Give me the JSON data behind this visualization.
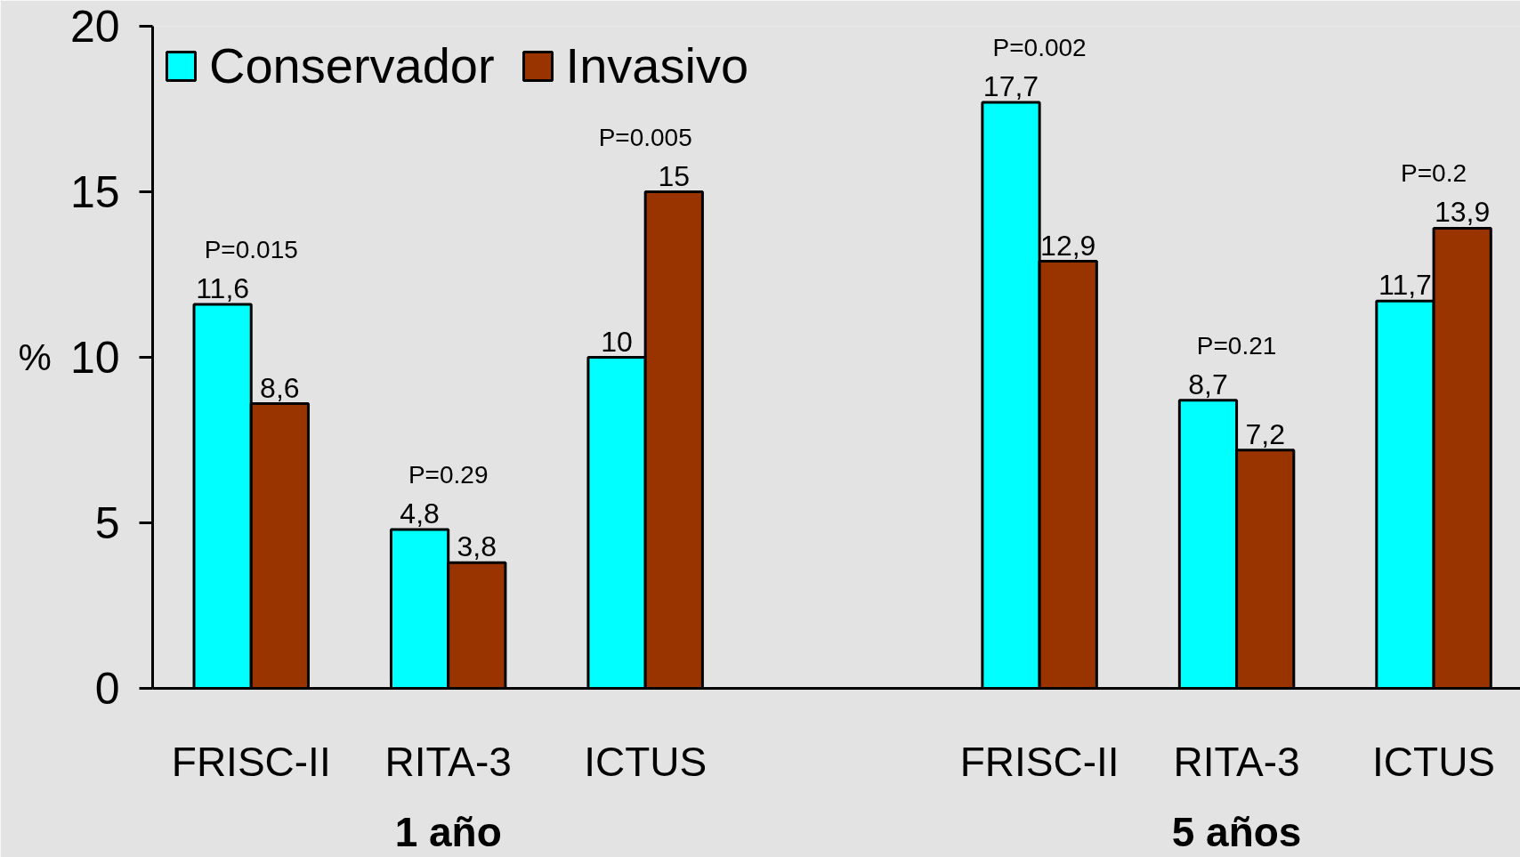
{
  "chart_data": {
    "type": "bar",
    "ylabel": "%",
    "categories": [
      "FRISC-II",
      "RITA-3",
      "ICTUS",
      null,
      "FRISC-II",
      "RITA-3",
      "ICTUS"
    ],
    "series": [
      {
        "name": "Conservador",
        "color": "#00ffff",
        "values": [
          11.6,
          4.8,
          10,
          null,
          17.7,
          8.7,
          11.7
        ],
        "value_labels": [
          "11,6",
          "4,8",
          "10",
          null,
          "17,7",
          "8,7",
          "11,7"
        ]
      },
      {
        "name": "Invasivo",
        "color": "#993300",
        "values": [
          8.6,
          3.8,
          15,
          null,
          12.9,
          7.2,
          13.9
        ],
        "value_labels": [
          "8,6",
          "3,8",
          "15",
          null,
          "12,9",
          "7,2",
          "13,9"
        ]
      }
    ],
    "ylim": [
      0,
      20
    ],
    "yticks": [
      0,
      5,
      10,
      15,
      20
    ],
    "legend": "top left",
    "annotations": [
      "P=0.015",
      "P=0.29",
      "P=0.005",
      "P=0.002",
      "P=0.21",
      "P=0.2",
      "1 año",
      "5 años"
    ]
  }
}
